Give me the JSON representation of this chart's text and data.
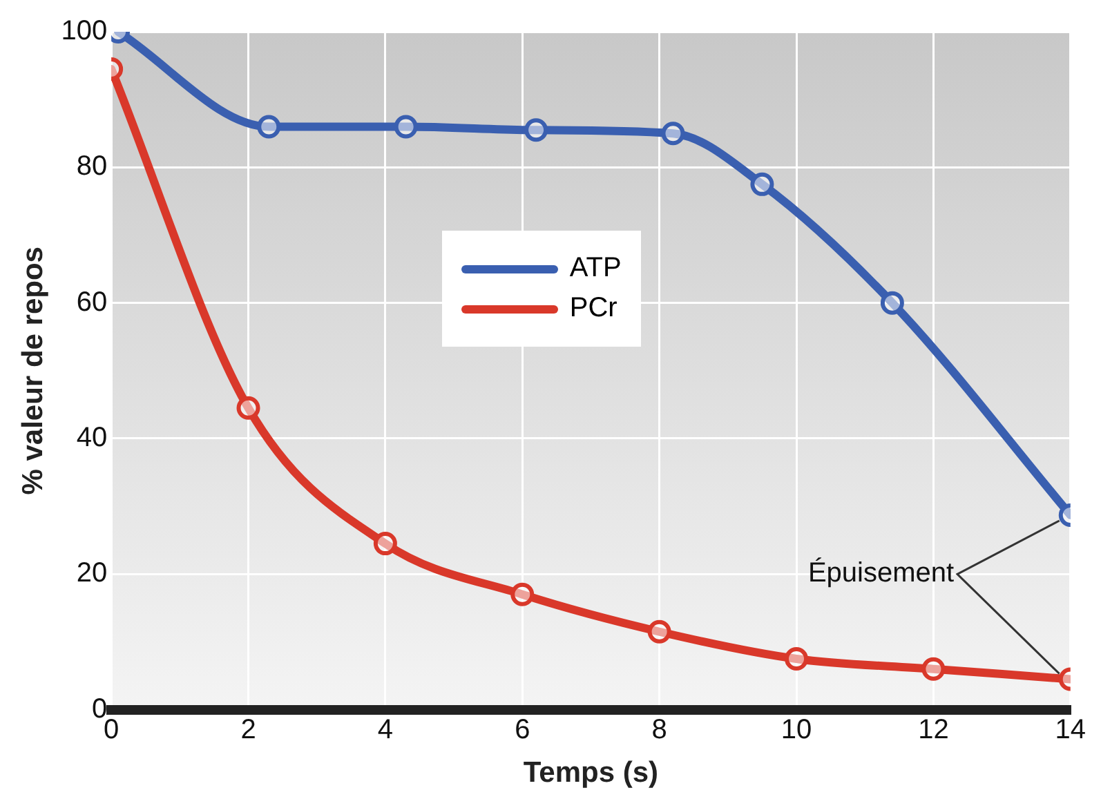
{
  "chart_data": {
    "type": "line",
    "xlabel": "Temps (s)",
    "ylabel": "% valeur de repos",
    "xlim": [
      0,
      14
    ],
    "xticks": [
      0,
      2,
      4,
      6,
      8,
      10,
      12,
      14
    ],
    "ylim": [
      0,
      100
    ],
    "yticks": [
      0,
      20,
      40,
      60,
      80,
      100
    ],
    "grid": true,
    "legend": "left",
    "marker": "circle",
    "line_style": "solid",
    "series": [
      {
        "name": "ATP",
        "color": "#3a5fb0",
        "x": [
          0.1,
          2.3,
          4.3,
          6.2,
          8.2,
          9.5,
          11.4,
          14
        ],
        "values": [
          100,
          86,
          86,
          85.5,
          85,
          77.5,
          60,
          28.7
        ]
      },
      {
        "name": "PCr",
        "color": "#d9382a",
        "x": [
          0,
          2,
          4,
          6,
          8,
          10,
          12,
          14
        ],
        "values": [
          94.5,
          44.5,
          24.5,
          17,
          11.5,
          7.5,
          6,
          4.5
        ]
      }
    ],
    "annotations": [
      "Épuisement"
    ]
  }
}
